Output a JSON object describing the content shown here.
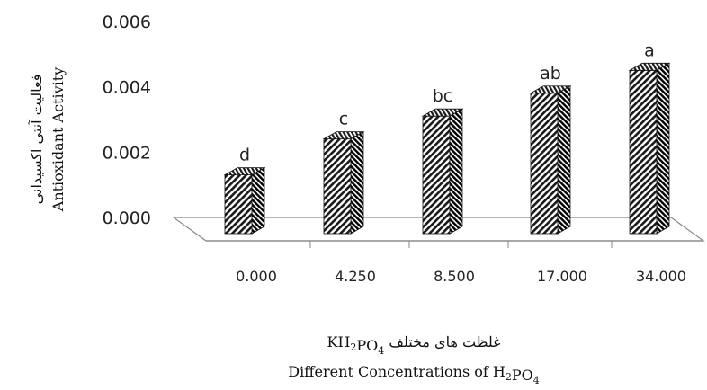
{
  "chart_data": {
    "type": "bar",
    "categories": [
      "0.000",
      "4.250",
      "8.500",
      "17.000",
      "34.000"
    ],
    "values": [
      0.0018,
      0.0029,
      0.0036,
      0.0043,
      0.005
    ],
    "data_labels": [
      "d",
      "c",
      "bc",
      "ab",
      "a"
    ],
    "yticks": [
      "0.000",
      "0.002",
      "0.004",
      "0.006"
    ],
    "ylim": [
      0,
      0.006
    ],
    "ylabel_fa": "فعالیت آنتی اکسیدانی",
    "ylabel_en": "Antioxidant Activity",
    "xlabel_fa": "غلظت های مختلف KH2PO4",
    "xlabel_en": "Different Concentrations of H2PO4",
    "grid": false,
    "legend": "none"
  }
}
